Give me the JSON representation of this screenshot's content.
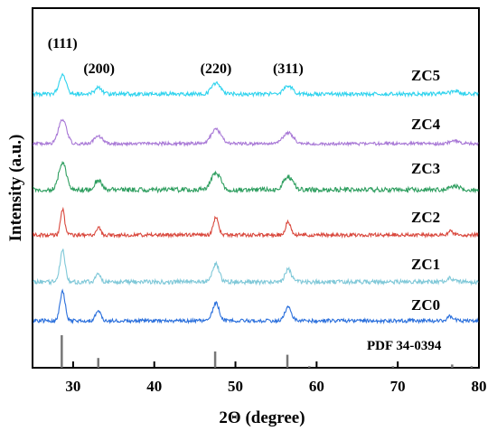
{
  "chart_data": {
    "type": "line",
    "xlabel": "2Θ (degree)",
    "ylabel": "Intensity (a.u.)",
    "xlim": [
      25,
      80
    ],
    "xticks": [
      30,
      40,
      50,
      60,
      70,
      80
    ],
    "y_ticks_shown": false,
    "grid": false,
    "peak_labels": [
      {
        "text": "(111)",
        "x": 28.7
      },
      {
        "text": "(200)",
        "x": 33.2
      },
      {
        "text": "(220)",
        "x": 47.6
      },
      {
        "text": "(311)",
        "x": 56.5
      }
    ],
    "series": [
      {
        "name": "ZC5",
        "color": "#2fd3ee",
        "peaks": [
          [
            28.7,
            1.0
          ],
          [
            33.1,
            0.3
          ],
          [
            47.6,
            0.55
          ],
          [
            56.5,
            0.42
          ],
          [
            77.0,
            0.15
          ]
        ]
      },
      {
        "name": "ZC4",
        "color": "#a878d6",
        "peaks": [
          [
            28.7,
            1.0
          ],
          [
            33.1,
            0.32
          ],
          [
            47.6,
            0.58
          ],
          [
            56.5,
            0.45
          ],
          [
            77.0,
            0.12
          ]
        ]
      },
      {
        "name": "ZC3",
        "color": "#2e9e5f",
        "peaks": [
          [
            28.7,
            1.0
          ],
          [
            33.1,
            0.35
          ],
          [
            47.6,
            0.62
          ],
          [
            56.5,
            0.48
          ],
          [
            77.0,
            0.15
          ]
        ]
      },
      {
        "name": "ZC2",
        "color": "#d9473c",
        "peaks": [
          [
            28.7,
            1.0
          ],
          [
            33.1,
            0.3
          ],
          [
            47.6,
            0.7
          ],
          [
            56.5,
            0.52
          ],
          [
            76.5,
            0.15
          ]
        ]
      },
      {
        "name": "ZC1",
        "color": "#7fc8d8",
        "peaks": [
          [
            28.7,
            1.0
          ],
          [
            33.1,
            0.28
          ],
          [
            47.6,
            0.58
          ],
          [
            56.5,
            0.4
          ],
          [
            76.5,
            0.12
          ]
        ]
      },
      {
        "name": "ZC0",
        "color": "#2a6fdc",
        "peaks": [
          [
            28.7,
            1.0
          ],
          [
            33.1,
            0.38
          ],
          [
            47.6,
            0.62
          ],
          [
            56.5,
            0.48
          ],
          [
            76.5,
            0.15
          ]
        ]
      }
    ],
    "reference": {
      "name": "PDF 34-0394",
      "color": "#777777",
      "lines": [
        {
          "x": 28.6,
          "h": 1.0
        },
        {
          "x": 33.1,
          "h": 0.3
        },
        {
          "x": 47.5,
          "h": 0.5
        },
        {
          "x": 56.4,
          "h": 0.4
        },
        {
          "x": 59.1,
          "h": 0.05
        },
        {
          "x": 69.4,
          "h": 0.05
        },
        {
          "x": 76.7,
          "h": 0.1
        },
        {
          "x": 79.1,
          "h": 0.05
        }
      ]
    }
  }
}
